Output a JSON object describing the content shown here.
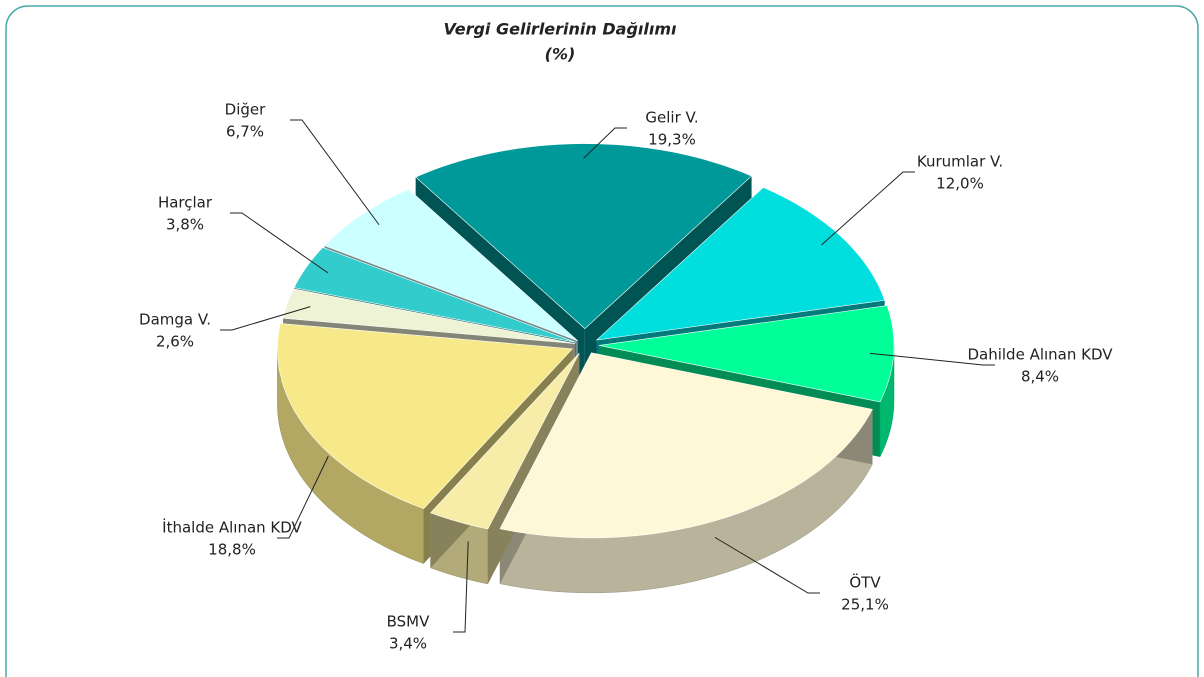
{
  "chart_data": {
    "type": "pie",
    "title": "Vergi Gelirlerinin Dağılımı",
    "subtitle": "(%)",
    "categories": [
      "Gelir V.",
      "Kurumlar V.",
      "Dahilde Alınan KDV",
      "ÖTV",
      "BSMV",
      "İthalde Alınan KDV",
      "Damga V.",
      "Harçlar",
      "Diğer"
    ],
    "values": [
      19.3,
      12.0,
      8.4,
      25.1,
      3.4,
      18.8,
      2.6,
      3.8,
      6.7
    ],
    "value_labels": [
      "19,3%",
      "12,0%",
      "8,4%",
      "25,1%",
      "3,4%",
      "18,8%",
      "2,6%",
      "3,8%",
      "6,7%"
    ],
    "colors": [
      "#009999",
      "#00dede",
      "#00ff99",
      "#fff8d6",
      "#f7eca8",
      "#f7e98a",
      "#eef3d6",
      "#33cccc",
      "#ccffff"
    ]
  }
}
